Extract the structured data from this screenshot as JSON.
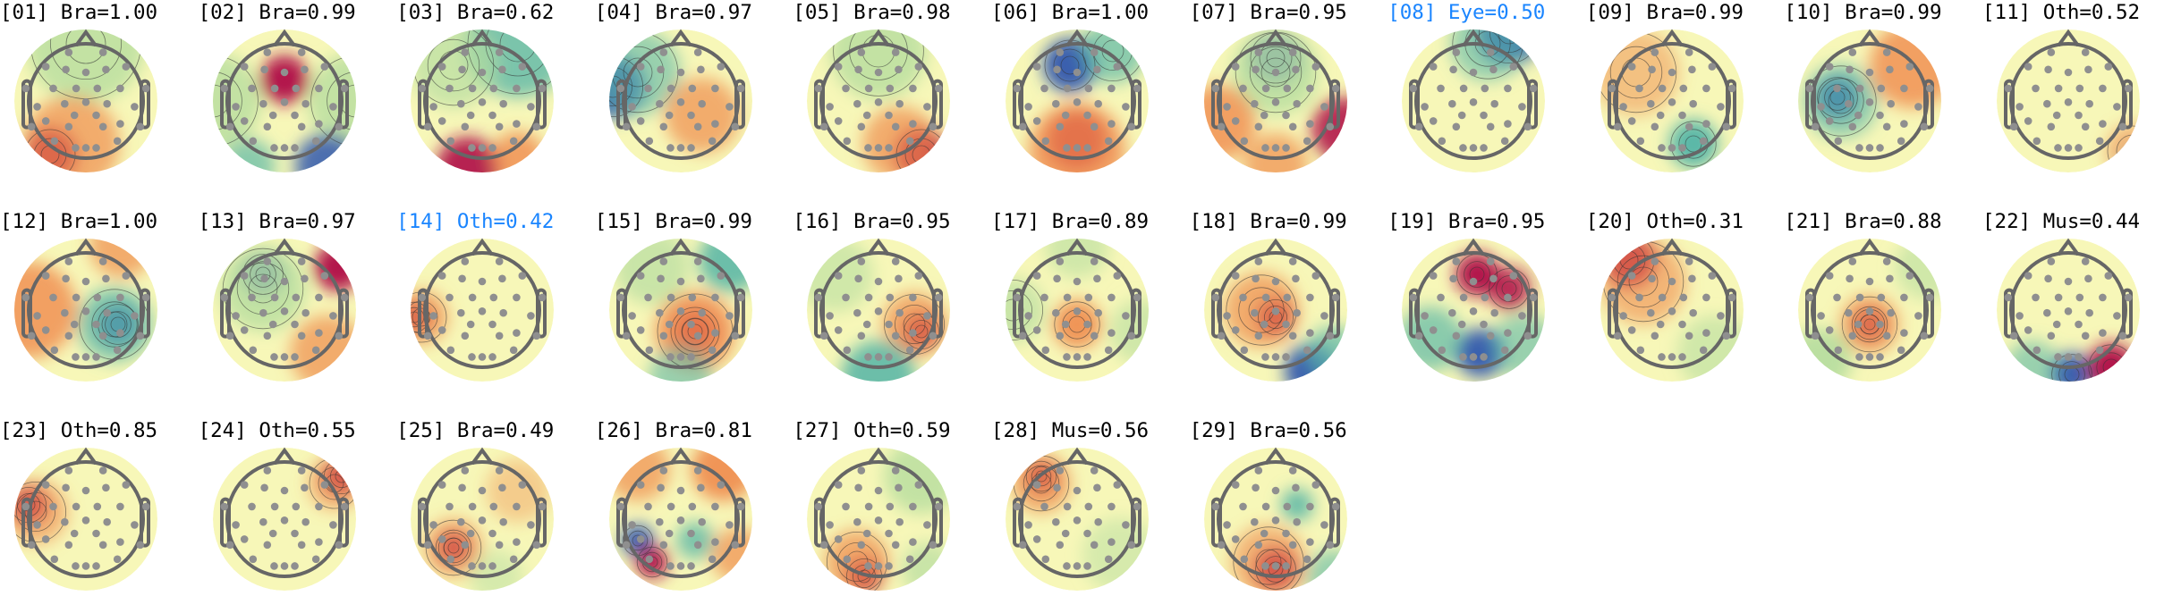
{
  "chart_data": {
    "type": "topomap",
    "colors": {
      "normal_title": "#000000",
      "highlight_title": "#1a85ff",
      "positive": "#b2184b",
      "negative": "#3b5fae",
      "neutral": "#f7f7b8"
    },
    "components": [
      {
        "title": "[01] Bra=1.00",
        "index": "01",
        "label": "Bra",
        "score": 1.0,
        "highlighted": false
      },
      {
        "title": "[02] Bra=0.99",
        "index": "02",
        "label": "Bra",
        "score": 0.99,
        "highlighted": false
      },
      {
        "title": "[03] Bra=0.62",
        "index": "03",
        "label": "Bra",
        "score": 0.62,
        "highlighted": false
      },
      {
        "title": "[04] Bra=0.97",
        "index": "04",
        "label": "Bra",
        "score": 0.97,
        "highlighted": false
      },
      {
        "title": "[05] Bra=0.98",
        "index": "05",
        "label": "Bra",
        "score": 0.98,
        "highlighted": false
      },
      {
        "title": "[06] Bra=1.00",
        "index": "06",
        "label": "Bra",
        "score": 1.0,
        "highlighted": false
      },
      {
        "title": "[07] Bra=0.95",
        "index": "07",
        "label": "Bra",
        "score": 0.95,
        "highlighted": false
      },
      {
        "title": "[08] Eye=0.50",
        "index": "08",
        "label": "Eye",
        "score": 0.5,
        "highlighted": true
      },
      {
        "title": "[09] Bra=0.99",
        "index": "09",
        "label": "Bra",
        "score": 0.99,
        "highlighted": false
      },
      {
        "title": "[10] Bra=0.99",
        "index": "10",
        "label": "Bra",
        "score": 0.99,
        "highlighted": false
      },
      {
        "title": "[11] Oth=0.52",
        "index": "11",
        "label": "Oth",
        "score": 0.52,
        "highlighted": false
      },
      {
        "title": "[12] Bra=1.00",
        "index": "12",
        "label": "Bra",
        "score": 1.0,
        "highlighted": false
      },
      {
        "title": "[13] Bra=0.97",
        "index": "13",
        "label": "Bra",
        "score": 0.97,
        "highlighted": false
      },
      {
        "title": "[14] Oth=0.42",
        "index": "14",
        "label": "Oth",
        "score": 0.42,
        "highlighted": true
      },
      {
        "title": "[15] Bra=0.99",
        "index": "15",
        "label": "Bra",
        "score": 0.99,
        "highlighted": false
      },
      {
        "title": "[16] Bra=0.95",
        "index": "16",
        "label": "Bra",
        "score": 0.95,
        "highlighted": false
      },
      {
        "title": "[17] Bra=0.89",
        "index": "17",
        "label": "Bra",
        "score": 0.89,
        "highlighted": false
      },
      {
        "title": "[18] Bra=0.99",
        "index": "18",
        "label": "Bra",
        "score": 0.99,
        "highlighted": false
      },
      {
        "title": "[19] Bra=0.95",
        "index": "19",
        "label": "Bra",
        "score": 0.95,
        "highlighted": false
      },
      {
        "title": "[20] Oth=0.31",
        "index": "20",
        "label": "Oth",
        "score": 0.31,
        "highlighted": false
      },
      {
        "title": "[21] Bra=0.88",
        "index": "21",
        "label": "Bra",
        "score": 0.88,
        "highlighted": false
      },
      {
        "title": "[22] Mus=0.44",
        "index": "22",
        "label": "Mus",
        "score": 0.44,
        "highlighted": false
      },
      {
        "title": "[23] Oth=0.85",
        "index": "23",
        "label": "Oth",
        "score": 0.85,
        "highlighted": false
      },
      {
        "title": "[24] Oth=0.55",
        "index": "24",
        "label": "Oth",
        "score": 0.55,
        "highlighted": false
      },
      {
        "title": "[25] Bra=0.49",
        "index": "25",
        "label": "Bra",
        "score": 0.49,
        "highlighted": false
      },
      {
        "title": "[26] Bra=0.81",
        "index": "26",
        "label": "Bra",
        "score": 0.81,
        "highlighted": false
      },
      {
        "title": "[27] Oth=0.59",
        "index": "27",
        "label": "Oth",
        "score": 0.59,
        "highlighted": false
      },
      {
        "title": "[28] Mus=0.56",
        "index": "28",
        "label": "Mus",
        "score": 0.56,
        "highlighted": false
      },
      {
        "title": "[29] Bra=0.56",
        "index": "29",
        "label": "Bra",
        "score": 0.56,
        "highlighted": false
      }
    ]
  }
}
